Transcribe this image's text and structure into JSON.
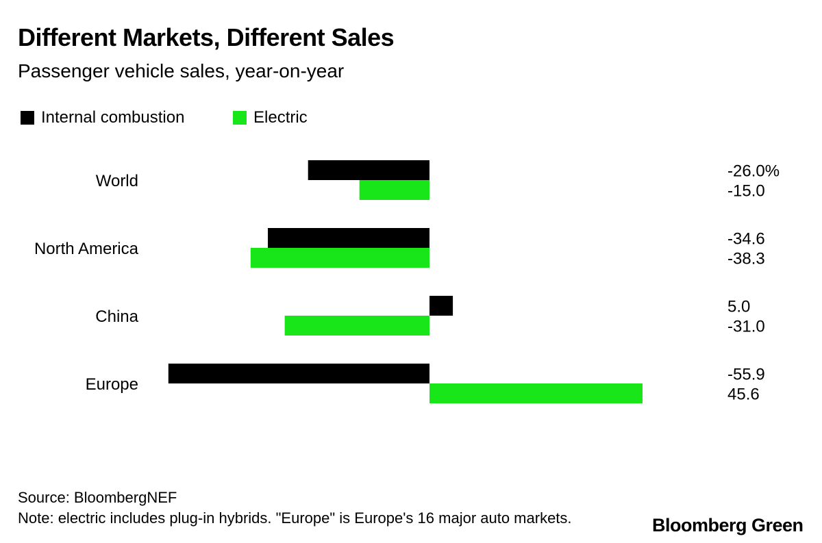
{
  "title": "Different Markets, Different Sales",
  "subtitle": "Passenger vehicle sales, year-on-year",
  "legend": [
    {
      "label": "Internal combustion",
      "color": "#000000"
    },
    {
      "label": "Electric",
      "color": "#19e619"
    }
  ],
  "source": "Source: BloombergNEF",
  "note": "Note: electric includes plug-in hybrids. \"Europe\" is Europe's 16 major auto markets.",
  "logo": "Bloomberg Green",
  "chart_data": {
    "type": "bar",
    "orientation": "horizontal",
    "categories": [
      "World",
      "North America",
      "China",
      "Europe"
    ],
    "series": [
      {
        "name": "Internal combustion",
        "color": "#000000",
        "values": [
          -26.0,
          -34.6,
          5.0,
          -55.9
        ],
        "labels": [
          "-26.0%",
          "-34.6",
          "5.0",
          "-55.9"
        ]
      },
      {
        "name": "Electric",
        "color": "#19e619",
        "values": [
          -15.0,
          -38.3,
          -31.0,
          45.6
        ],
        "labels": [
          "-15.0",
          "-38.3",
          "-31.0",
          "45.6"
        ]
      }
    ],
    "unit": "%",
    "grid": false,
    "legend_position": "top-left"
  }
}
